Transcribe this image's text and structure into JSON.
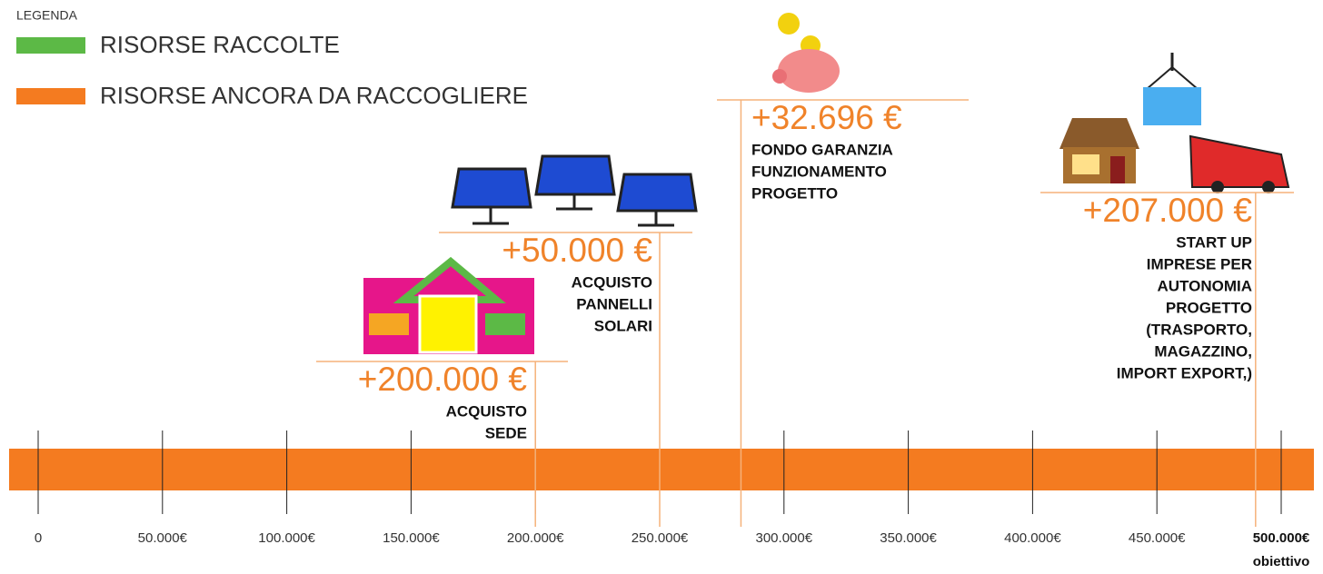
{
  "legend": {
    "title": "LEGENDA",
    "items": [
      {
        "label": "RISORSE RACCOLTE",
        "color": "#5cb946"
      },
      {
        "label": "RISORSE ANCORA DA RACCOGLIERE",
        "color": "#f47b20"
      }
    ]
  },
  "axis": {
    "range": [
      0,
      500000
    ],
    "ticks": [
      0,
      {
        "value": 50000,
        "label": "50.000€"
      },
      {
        "value": 100000,
        "label": "100.000€"
      },
      {
        "value": 150000,
        "label": "150.000€"
      },
      {
        "value": 200000,
        "label": "200.000€"
      },
      {
        "value": 250000,
        "label": "250.000€"
      },
      {
        "value": 300000,
        "label": "300.000€"
      },
      {
        "value": 350000,
        "label": "350.000€"
      },
      {
        "value": 400000,
        "label": "400.000€"
      },
      {
        "value": 450000,
        "label": "450.000€"
      },
      {
        "value": 500000,
        "label": "500.000€"
      }
    ],
    "goal_label": "obiettivo",
    "bar_color": "#f47b20"
  },
  "milestones": [
    {
      "value": 200000,
      "value_label": "+200.000 €",
      "description": [
        "ACQUISTO",
        "SEDE"
      ]
    },
    {
      "value": 50000,
      "value_label": "+50.000 €",
      "description": [
        "ACQUISTO",
        "PANNELLI",
        "SOLARI"
      ]
    },
    {
      "value": 32696,
      "value_label": "+32.696 €",
      "description": [
        "FONDO GARANZIA",
        "FUNZIONAMENTO",
        "PROGETTO"
      ]
    },
    {
      "value": 207000,
      "value_label": "+207.000 €",
      "description": [
        "START UP",
        "IMPRESE PER",
        "AUTONOMIA",
        "PROGETTO",
        "(TRASPORTO,",
        "MAGAZZINO,",
        "IMPORT EXPORT,)"
      ]
    }
  ]
}
